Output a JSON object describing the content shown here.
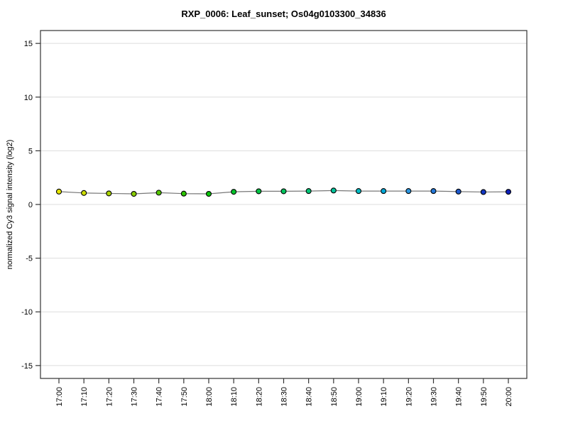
{
  "window": {
    "background": "#ffffff"
  },
  "chart_data": {
    "type": "line",
    "title": "RXP_0006: Leaf_sunset; Os04g0103300_34836",
    "xlabel": "",
    "ylabel": "normalized Cy3 signal intensity (log2)",
    "categories": [
      "17:00",
      "17:10",
      "17:20",
      "17:30",
      "17:40",
      "17:50",
      "18:00",
      "18:10",
      "18:20",
      "18:30",
      "18:40",
      "18:50",
      "19:00",
      "19:10",
      "19:20",
      "19:30",
      "19:40",
      "19:50",
      "20:00"
    ],
    "values": [
      1.2,
      1.07,
      1.03,
      0.99,
      1.1,
      1.01,
      0.99,
      1.18,
      1.23,
      1.23,
      1.25,
      1.3,
      1.25,
      1.25,
      1.25,
      1.25,
      1.2,
      1.16,
      1.18
    ],
    "point_colors": [
      "#e6e600",
      "#ccdd00",
      "#aad400",
      "#88cc00",
      "#55c800",
      "#2bc400",
      "#0ac40a",
      "#00c42b",
      "#00c444",
      "#00c45d",
      "#00c476",
      "#00c49c",
      "#00bcc4",
      "#00a8d8",
      "#2b96e0",
      "#2377d8",
      "#1c58cc",
      "#1238c4",
      "#0d1fba"
    ],
    "line_color": "#787878",
    "marker_outline": "#000000",
    "yticks": [
      -15,
      -10,
      -5,
      0,
      5,
      10,
      15
    ],
    "ylim": [
      -16.2,
      16.2
    ],
    "grid": true,
    "grid_color": "#dddddd",
    "axis_color": "#333333",
    "tick_label_color": "#000000",
    "legend_position": "none"
  }
}
